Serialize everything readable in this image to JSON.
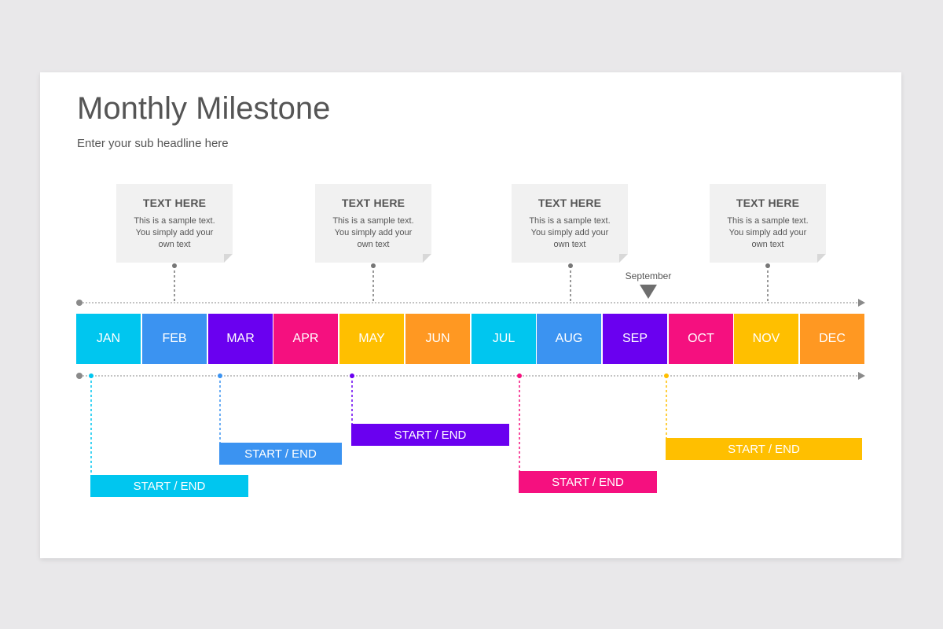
{
  "title": "Monthly Milestone",
  "subtitle": "Enter your sub headline here",
  "cards": [
    {
      "title": "TEXT HERE",
      "body": "This is a sample text. You simply add your own text"
    },
    {
      "title": "TEXT HERE",
      "body": "This is a sample text. You simply add your own text"
    },
    {
      "title": "TEXT HERE",
      "body": "This is a sample text. You simply add your own text"
    },
    {
      "title": "TEXT HERE",
      "body": "This is a sample text. You simply add your own text"
    }
  ],
  "months": [
    {
      "label": "JAN",
      "color": "#00c6ef"
    },
    {
      "label": "FEB",
      "color": "#3b93f1"
    },
    {
      "label": "MAR",
      "color": "#6a00f0"
    },
    {
      "label": "APR",
      "color": "#f5107f"
    },
    {
      "label": "MAY",
      "color": "#ffbf00"
    },
    {
      "label": "JUN",
      "color": "#ff9822"
    },
    {
      "label": "JUL",
      "color": "#00c6ef"
    },
    {
      "label": "AUG",
      "color": "#3b93f1"
    },
    {
      "label": "SEP",
      "color": "#6a00f0"
    },
    {
      "label": "OCT",
      "color": "#f5107f"
    },
    {
      "label": "NOV",
      "color": "#ffbf00"
    },
    {
      "label": "DEC",
      "color": "#ff9822"
    }
  ],
  "marker": {
    "label": "September",
    "icon": "triangle-down-icon"
  },
  "bars": [
    {
      "label": "START / END",
      "color": "#00c6ef"
    },
    {
      "label": "START / END",
      "color": "#3b93f1"
    },
    {
      "label": "START / END",
      "color": "#6a00f0"
    },
    {
      "label": "START / END",
      "color": "#f5107f"
    },
    {
      "label": "START / END",
      "color": "#ffbf00"
    }
  ],
  "line_color": "#8a8a8a"
}
